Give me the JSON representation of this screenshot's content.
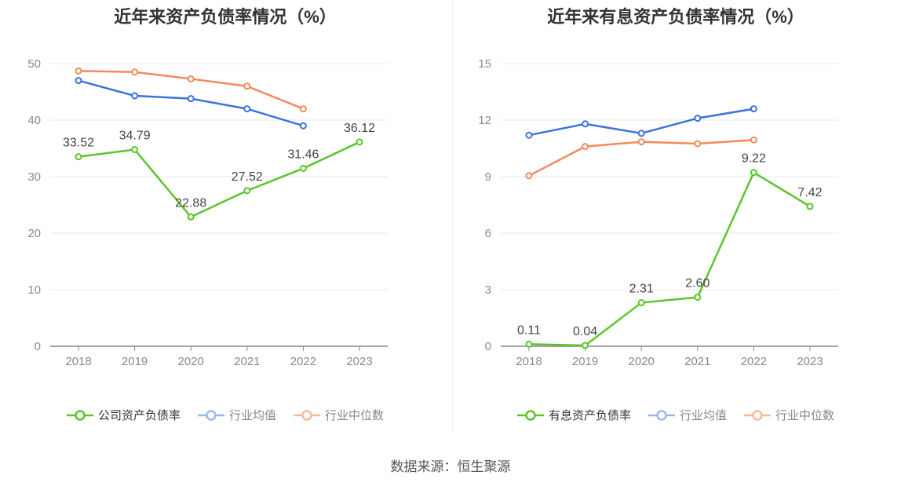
{
  "chart_data": [
    {
      "type": "line",
      "title": "近年来资产负债率情况（%）",
      "categories": [
        "2018",
        "2019",
        "2020",
        "2021",
        "2022",
        "2023"
      ],
      "y_ticks": [
        0,
        10,
        20,
        30,
        40,
        50
      ],
      "ylim": [
        0,
        50
      ],
      "grid": true,
      "legend_position": "bottom",
      "series": [
        {
          "name": "公司资产负债率",
          "color": "#5bc52b",
          "values": [
            33.52,
            34.79,
            22.88,
            27.52,
            31.46,
            36.12
          ],
          "labels": [
            "33.52",
            "34.79",
            "22.88",
            "27.52",
            "31.46",
            "36.12"
          ]
        },
        {
          "name": "行业均值",
          "color": "#3b73dc",
          "values": [
            47.0,
            44.3,
            43.8,
            42.0,
            39.0,
            null
          ]
        },
        {
          "name": "行业中位数",
          "color": "#f28a5a",
          "values": [
            48.7,
            48.5,
            47.3,
            46.0,
            42.0,
            null
          ]
        }
      ]
    },
    {
      "type": "line",
      "title": "近年来有息资产负债率情况（%）",
      "categories": [
        "2018",
        "2019",
        "2020",
        "2021",
        "2022",
        "2023"
      ],
      "y_ticks": [
        0,
        3,
        6,
        9,
        12,
        15
      ],
      "ylim": [
        0,
        15
      ],
      "grid": true,
      "legend_position": "bottom",
      "series": [
        {
          "name": "有息资产负债率",
          "color": "#5bc52b",
          "values": [
            0.11,
            0.04,
            2.31,
            2.6,
            9.22,
            7.42
          ],
          "labels": [
            "0.11",
            "0.04",
            "2.31",
            "2.60",
            "9.22",
            "7.42"
          ]
        },
        {
          "name": "行业均值",
          "color": "#3b73dc",
          "values": [
            11.2,
            11.8,
            11.3,
            12.1,
            12.6,
            null
          ]
        },
        {
          "name": "行业中位数",
          "color": "#f28a5a",
          "values": [
            9.05,
            10.6,
            10.85,
            10.75,
            10.95,
            null
          ]
        }
      ]
    }
  ],
  "source": "数据来源：恒生聚源"
}
